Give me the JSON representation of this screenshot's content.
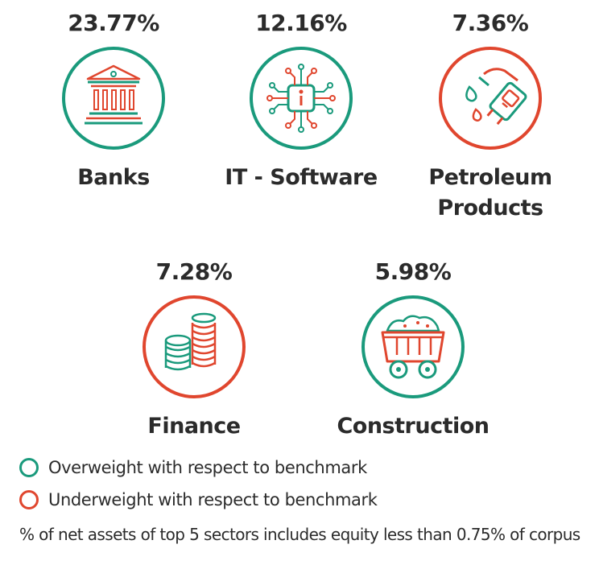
{
  "colors": {
    "overweight": "#1a9a7c",
    "underweight": "#e0462e",
    "icon_green": "#1a9a7c",
    "icon_red": "#e0462e",
    "text": "#2b2b2b"
  },
  "sectors": [
    {
      "percent": "23.77%",
      "name_line1": "Banks",
      "name_line2": "",
      "weighting": "overweight",
      "icon": "bank-building-icon"
    },
    {
      "percent": "12.16%",
      "name_line1": "IT - Software",
      "name_line2": "",
      "weighting": "overweight",
      "icon": "circuit-chip-icon"
    },
    {
      "percent": "7.36%",
      "name_line1": "Petroleum",
      "name_line2": "Products",
      "weighting": "underweight",
      "icon": "fuel-nozzle-icon"
    },
    {
      "percent": "7.28%",
      "name_line1": "Finance",
      "name_line2": "",
      "weighting": "underweight",
      "icon": "coin-stacks-icon"
    },
    {
      "percent": "5.98%",
      "name_line1": "Construction",
      "name_line2": "",
      "weighting": "overweight",
      "icon": "mining-cart-icon"
    }
  ],
  "legend": {
    "overweight_label": "Overweight with respect to benchmark",
    "underweight_label": "Underweight with respect to benchmark"
  },
  "footnote": "% of net assets of top 5 sectors includes equity less than 0.75% of corpus"
}
